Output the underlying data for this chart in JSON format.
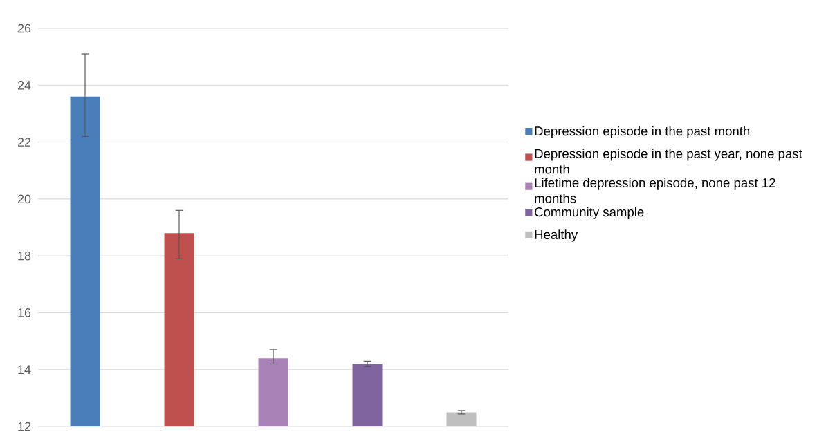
{
  "chart_data": {
    "type": "bar",
    "categories": [
      null
    ],
    "series": [
      {
        "name": "Depression episode in the past month",
        "color": "#4a7ebb",
        "values": [
          23.6
        ],
        "errors": [
          [
            22.2,
            25.1
          ]
        ]
      },
      {
        "name": "Depression episode in the past year, none past month",
        "color": "#c0504d",
        "values": [
          18.8
        ],
        "errors": [
          [
            17.9,
            19.6
          ]
        ]
      },
      {
        "name": "Lifetime depression episode, none past 12 months",
        "color": "#a983b8",
        "values": [
          14.4
        ],
        "errors": [
          [
            14.2,
            14.7
          ]
        ]
      },
      {
        "name": "Community sample",
        "color": "#7f64a0",
        "values": [
          14.2
        ],
        "errors": [
          [
            14.1,
            14.3
          ]
        ]
      },
      {
        "name": "Healthy",
        "color": "#bfbfbf",
        "values": [
          12.5
        ],
        "errors": [
          [
            12.44,
            12.56
          ]
        ]
      }
    ],
    "ylim": [
      12,
      26
    ],
    "yticks": [
      12,
      14,
      16,
      18,
      20,
      22,
      24,
      26
    ],
    "grid": "y",
    "legend": "right"
  }
}
